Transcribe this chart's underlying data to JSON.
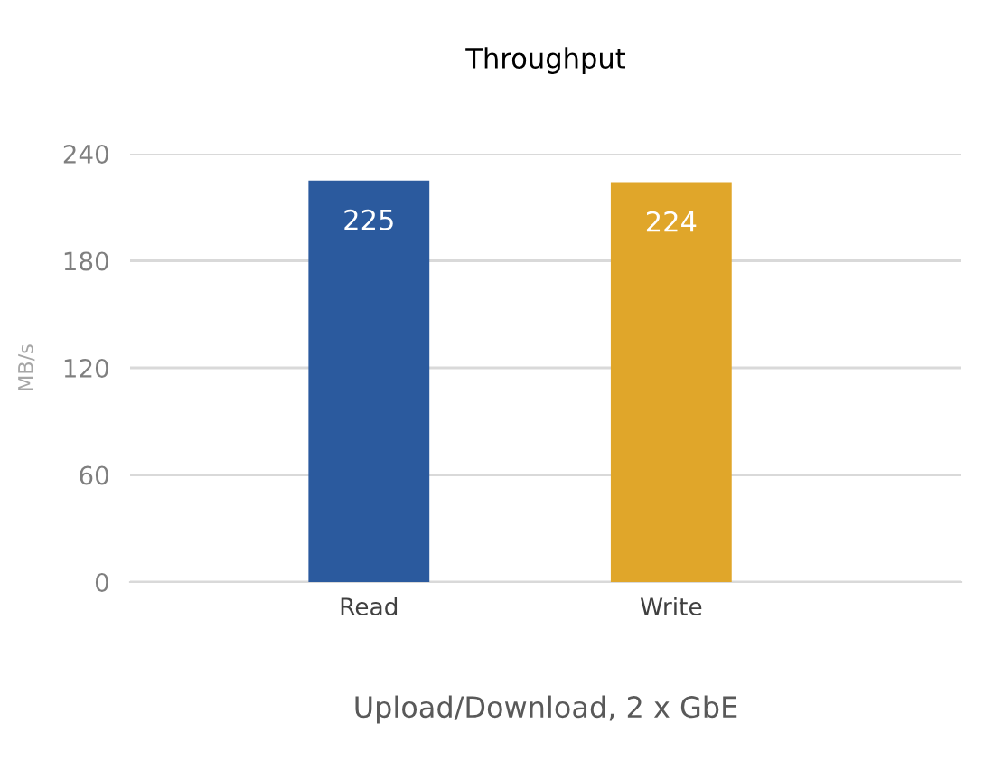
{
  "chart_data": {
    "type": "bar",
    "title": "Throughput",
    "xlabel": "Upload/Download, 2 x GbE",
    "ylabel": "MB/s",
    "categories": [
      "Read",
      "Write"
    ],
    "values": [
      225,
      224
    ],
    "colors": [
      "#2b5a9e",
      "#e0a62a"
    ],
    "ylim": [
      0,
      240
    ],
    "yticks": [
      0,
      60,
      120,
      180,
      240
    ],
    "grid": "y",
    "data_labels": true,
    "legend": false
  }
}
